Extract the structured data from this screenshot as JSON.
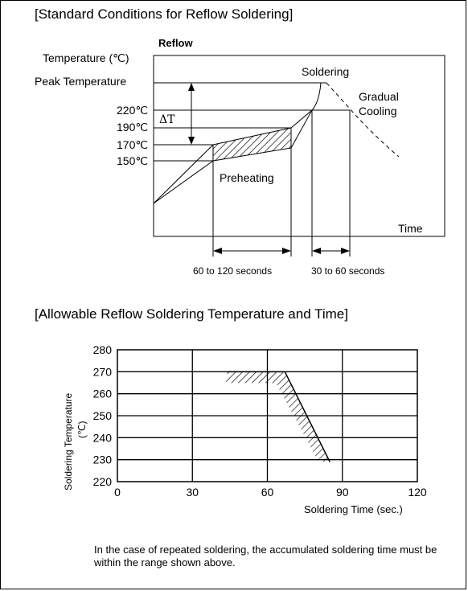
{
  "section1": {
    "title": "[Standard Conditions for Reflow Soldering]",
    "subtitle": "Reflow",
    "y_axis_label": "Temperature (℃)",
    "x_axis_label": "Time",
    "temperature_markers": [
      "Peak Temperature",
      "220℃",
      "190℃",
      "170℃",
      "150℃"
    ],
    "delta_t_label": "ΔT",
    "region_labels": {
      "soldering": "Soldering",
      "gradual_cooling_1": "Gradual",
      "gradual_cooling_2": "Cooling",
      "preheating": "Preheating"
    },
    "intervals": {
      "preheat": "60 to 120 seconds",
      "soldering": "30 to 60 seconds"
    }
  },
  "section2": {
    "title": "[Allowable Reflow Soldering Temperature and Time]",
    "y_axis_label_1": "Soldering Temperature",
    "y_axis_label_2": "(℃)",
    "x_axis_label": "Soldering Time (sec.)"
  },
  "note": "In the case of repeated soldering, the accumulated soldering time must be within the range shown above.",
  "chart_data": [
    {
      "type": "line",
      "title": "Reflow",
      "xlabel": "Time",
      "ylabel": "Temperature (℃)",
      "y_markers": [
        "Peak Temperature",
        "220℃",
        "190℃",
        "170℃",
        "150℃"
      ],
      "regions": [
        "Preheating",
        "Soldering",
        "Gradual Cooling"
      ],
      "durations": {
        "preheating": "60 to 120 seconds",
        "soldering": "30 to 60 seconds"
      }
    },
    {
      "type": "line",
      "xlabel": "Soldering Time (sec.)",
      "ylabel": "Soldering Temperature (℃)",
      "xlim": [
        0,
        120
      ],
      "ylim": [
        220,
        280
      ],
      "x_ticks": [
        0,
        30,
        60,
        90,
        120
      ],
      "y_ticks": [
        220,
        230,
        240,
        250,
        260,
        270,
        280
      ],
      "grid": true,
      "boundary": {
        "x": [
          44,
          67,
          85
        ],
        "y": [
          270,
          270,
          229
        ]
      }
    }
  ]
}
